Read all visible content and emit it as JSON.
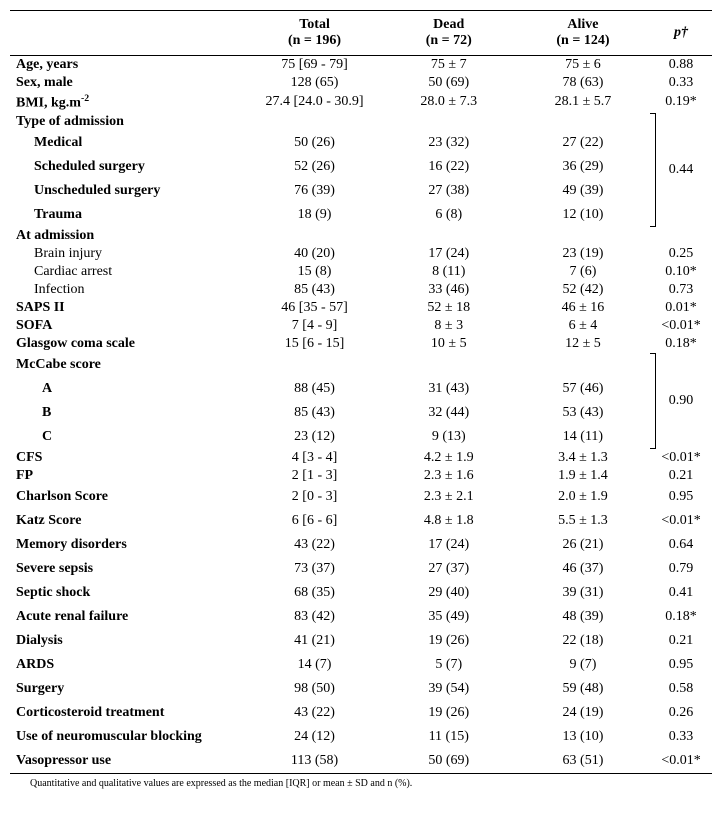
{
  "header": {
    "blank": "",
    "total": "Total",
    "total_n": "(n = 196)",
    "dead": "Dead",
    "dead_n": "(n = 72)",
    "alive": "Alive",
    "alive_n": "(n = 124)",
    "p": "p†"
  },
  "rows": {
    "age": {
      "label": "Age, years",
      "total": "75 [69 - 79]",
      "dead": "75 ± 7",
      "alive": "75 ± 6",
      "p": "0.88"
    },
    "sex": {
      "label": "Sex, male",
      "total": "128 (65)",
      "dead": "50 (69)",
      "alive": "78 (63)",
      "p": "0.33"
    },
    "bmi": {
      "label_pre": "BMI, kg.m",
      "label_sup": "-2",
      "total": "27.4 [24.0 - 30.9]",
      "dead": "28.0 ± 7.3",
      "alive": "28.1 ± 5.7",
      "p": "0.19*"
    },
    "admtype": {
      "label": "Type of admission"
    },
    "adm_med": {
      "label": "Medical",
      "total": "50 (26)",
      "dead": "23 (32)",
      "alive": "27 (22)"
    },
    "adm_ssurg": {
      "label": "Scheduled surgery",
      "total": "52 (26)",
      "dead": "16 (22)",
      "alive": "36 (29)"
    },
    "adm_usurg": {
      "label": "Unscheduled surgery",
      "total": "76 (39)",
      "dead": "27 (38)",
      "alive": "49 (39)"
    },
    "adm_trauma": {
      "label": "Trauma",
      "total": "18 (9)",
      "dead": "6 (8)",
      "alive": "12 (10)"
    },
    "adm_group_p": "0.44",
    "atadm": {
      "label": "At admission"
    },
    "brain": {
      "label": "Brain injury",
      "total": "40 (20)",
      "dead": "17 (24)",
      "alive": "23 (19)",
      "p": "0.25"
    },
    "cardiac": {
      "label": "Cardiac arrest",
      "total": "15 (8)",
      "dead": "8 (11)",
      "alive": "7 (6)",
      "p": "0.10*"
    },
    "infection": {
      "label": "Infection",
      "total": "85 (43)",
      "dead": "33 (46)",
      "alive": "52 (42)",
      "p": "0.73"
    },
    "saps": {
      "label": "SAPS II",
      "total": "46 [35 - 57]",
      "dead": "52 ± 18",
      "alive": "46 ± 16",
      "p": "0.01*"
    },
    "sofa": {
      "label": "SOFA",
      "total": "7 [4 - 9]",
      "dead": "8 ± 3",
      "alive": "6 ± 4",
      "p": "<0.01*"
    },
    "gcs": {
      "label": "Glasgow coma scale",
      "total": "15 [6 - 15]",
      "dead": "10 ± 5",
      "alive": "12 ± 5",
      "p": "0.18*"
    },
    "mccabe": {
      "label": "McCabe score"
    },
    "mc_a": {
      "label": "A",
      "total": "88 (45)",
      "dead": "31 (43)",
      "alive": "57 (46)"
    },
    "mc_b": {
      "label": "B",
      "total": "85 (43)",
      "dead": "32 (44)",
      "alive": "53 (43)"
    },
    "mc_c": {
      "label": "C",
      "total": "23 (12)",
      "dead": "9 (13)",
      "alive": "14 (11)"
    },
    "mc_group_p": "0.90",
    "cfs": {
      "label": "CFS",
      "total": "4 [3 - 4]",
      "dead": "4.2 ± 1.9",
      "alive": "3.4 ± 1.3",
      "p": "<0.01*"
    },
    "fp": {
      "label": "FP",
      "total": "2 [1 - 3]",
      "dead": "2.3 ± 1.6",
      "alive": "1.9 ± 1.4",
      "p": "0.21"
    },
    "charlson": {
      "label": "Charlson Score",
      "total": "2 [0 - 3]",
      "dead": "2.3 ± 2.1",
      "alive": "2.0 ± 1.9",
      "p": "0.95"
    },
    "katz": {
      "label": "Katz Score",
      "total": "6 [6 - 6]",
      "dead": "4.8 ± 1.8",
      "alive": "5.5 ± 1.3",
      "p": "<0.01*"
    },
    "memory": {
      "label": "Memory disorders",
      "total": "43 (22)",
      "dead": "17 (24)",
      "alive": "26 (21)",
      "p": "0.64"
    },
    "sevsep": {
      "label": "Severe sepsis",
      "total": "73 (37)",
      "dead": "27 (37)",
      "alive": "46 (37)",
      "p": "0.79"
    },
    "septic": {
      "label": "Septic shock",
      "total": "68 (35)",
      "dead": "29 (40)",
      "alive": "39 (31)",
      "p": "0.41"
    },
    "arf": {
      "label": "Acute renal failure",
      "total": "83 (42)",
      "dead": "35 (49)",
      "alive": "48 (39)",
      "p": "0.18*"
    },
    "dialysis": {
      "label": "Dialysis",
      "total": "41 (21)",
      "dead": "19 (26)",
      "alive": "22 (18)",
      "p": "0.21"
    },
    "ards": {
      "label": "ARDS",
      "total": "14 (7)",
      "dead": "5 (7)",
      "alive": "9 (7)",
      "p": "0.95"
    },
    "surgery": {
      "label": "Surgery",
      "total": "98 (50)",
      "dead": "39 (54)",
      "alive": "59 (48)",
      "p": "0.58"
    },
    "cortico": {
      "label": "Corticosteroid treatment",
      "total": "43 (22)",
      "dead": "19 (26)",
      "alive": "24 (19)",
      "p": "0.26"
    },
    "nmb": {
      "label": "Use of neuromuscular blocking",
      "total": "24 (12)",
      "dead": "11 (15)",
      "alive": "13 (10)",
      "p": "0.33"
    },
    "vaso": {
      "label": "Vasopressor use",
      "total": "113 (58)",
      "dead": "50 (69)",
      "alive": "63 (51)",
      "p": "<0.01*"
    }
  },
  "footnote": "Quantitative and qualitative values are expressed as the median [IQR] or mean ± SD and n (%)."
}
